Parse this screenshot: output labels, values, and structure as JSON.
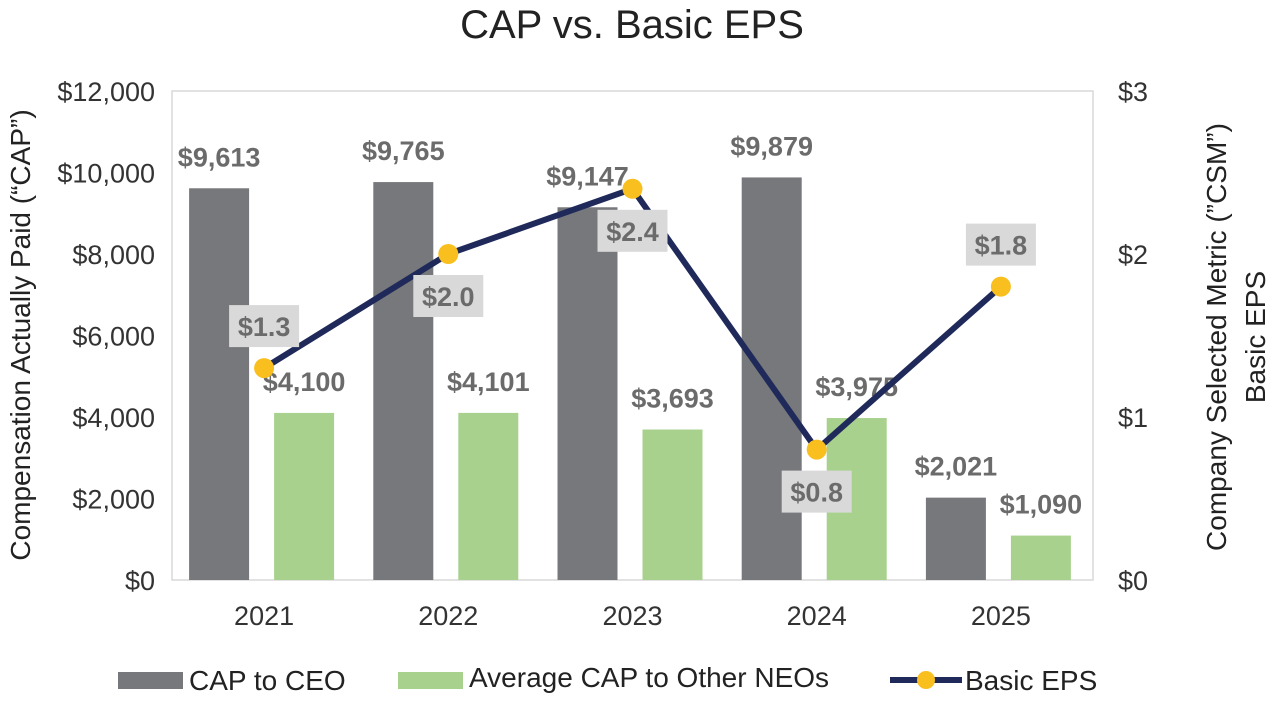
{
  "chart_data": {
    "type": "bar",
    "title": "CAP vs. Basic EPS",
    "categories": [
      "2021",
      "2022",
      "2023",
      "2024",
      "2025"
    ],
    "series": [
      {
        "name": "CAP to CEO",
        "color": "#77787b",
        "axis": "left",
        "values": [
          9613,
          9765,
          9147,
          9879,
          2021
        ],
        "labels": [
          "$9,613",
          "$9,765",
          "$9,147",
          "$9,879",
          "$2,021"
        ]
      },
      {
        "name": "Average CAP to Other NEOs",
        "color": "#a9d18e",
        "axis": "left",
        "values": [
          4100,
          4101,
          3693,
          3975,
          1090
        ],
        "labels": [
          "$4,100",
          "$4,101",
          "$3,693",
          "$3,975",
          "$1,090"
        ]
      },
      {
        "name": "Basic EPS",
        "type": "line",
        "axis": "right",
        "line_color": "#1f2a5a",
        "marker_color": "#f9bf1e",
        "values": [
          1.3,
          2.0,
          2.4,
          0.8,
          1.8
        ],
        "labels": [
          "$1.3",
          "$2.0",
          "$2.4",
          "$0.8",
          "$1.8"
        ]
      }
    ],
    "y_left": {
      "label": "Compensation Actually Paid (“CAP”)",
      "ylim": [
        0,
        12000
      ],
      "ticks": [
        0,
        2000,
        4000,
        6000,
        8000,
        10000,
        12000
      ],
      "tick_labels": [
        "$0",
        "$2,000",
        "$4,000",
        "$6,000",
        "$8,000",
        "$10,000",
        "$12,000"
      ]
    },
    "y_right": {
      "label_line1": "Company Selected Metric (”CSM”)",
      "label_line2": "Basic EPS",
      "ylim": [
        0,
        3
      ],
      "ticks": [
        0,
        1,
        2,
        3
      ],
      "tick_labels": [
        "$0",
        "$1",
        "$2",
        "$3"
      ]
    },
    "legend": "bottom",
    "grid": false
  }
}
